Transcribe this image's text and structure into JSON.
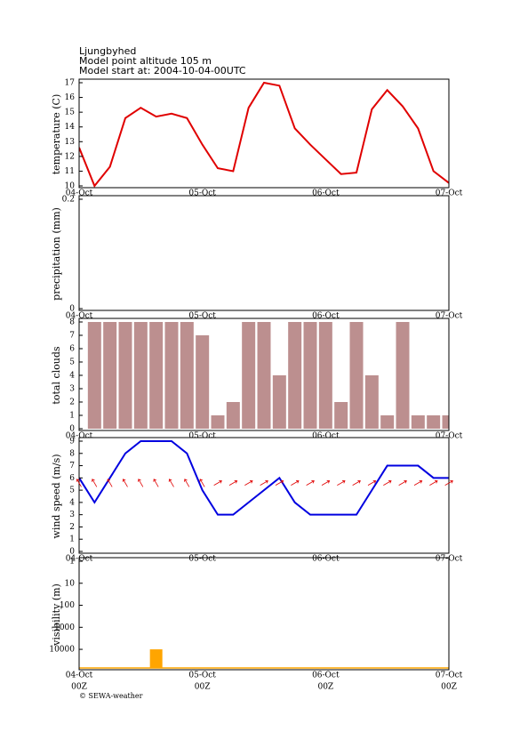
{
  "header": {
    "lines": [
      "Ljungbyhed",
      "Model point altitude  105 m",
      "Model start at: 2004-10-04-00UTC"
    ]
  },
  "footer": {
    "credit": "© SEWA-weather"
  },
  "chart_data": [
    {
      "type": "line",
      "ylabel": "temperature (C)",
      "color": "#e00000",
      "categories": [
        "04-Oct",
        null,
        null,
        null,
        null,
        null,
        null,
        null,
        "05-Oct",
        null,
        null,
        null,
        null,
        null,
        null,
        null,
        "06-Oct",
        null,
        null,
        null,
        null,
        null,
        null,
        null,
        "07-Oct"
      ],
      "values": [
        12.6,
        10.0,
        11.3,
        14.6,
        15.3,
        14.7,
        14.9,
        14.6,
        12.8,
        11.2,
        11.0,
        15.3,
        17.0,
        16.8,
        13.9,
        12.8,
        11.8,
        10.8,
        10.9,
        15.2,
        16.5,
        15.4,
        13.9,
        11.0,
        10.2
      ],
      "ylim": [
        10,
        17
      ],
      "yticks": [
        10,
        11,
        12,
        13,
        14,
        15,
        16,
        17
      ]
    },
    {
      "type": "bar",
      "ylabel": "precipitation (mm)",
      "color": "#4060e0",
      "categories": [
        "04-Oct",
        null,
        null,
        null,
        null,
        null,
        null,
        null,
        "05-Oct",
        null,
        null,
        null,
        null,
        null,
        null,
        null,
        "06-Oct",
        null,
        null,
        null,
        null,
        null,
        null,
        null,
        "07-Oct"
      ],
      "values": [
        null,
        0,
        0,
        0,
        0,
        0,
        0,
        0,
        0,
        0,
        0,
        0,
        0,
        0,
        0,
        0,
        0,
        0,
        0,
        0,
        0,
        0,
        0,
        0,
        0
      ],
      "ylim": [
        0,
        0.2
      ],
      "yticks": [
        0,
        0.2
      ]
    },
    {
      "type": "bar",
      "ylabel": "total clouds",
      "color": "#bc8f8f",
      "categories": [
        "04-Oct",
        null,
        null,
        null,
        null,
        null,
        null,
        null,
        "05-Oct",
        null,
        null,
        null,
        null,
        null,
        null,
        null,
        "06-Oct",
        null,
        null,
        null,
        null,
        null,
        null,
        null,
        "07-Oct"
      ],
      "values": [
        null,
        8,
        8,
        8,
        8,
        8,
        8,
        8,
        7,
        1,
        2,
        8,
        8,
        4,
        8,
        8,
        8,
        2,
        8,
        4,
        1,
        8,
        1,
        1,
        1
      ],
      "ylim": [
        0,
        8
      ],
      "yticks": [
        0,
        1,
        2,
        3,
        4,
        5,
        6,
        7,
        8
      ]
    },
    {
      "type": "line",
      "ylabel": "wind speed (m/s)",
      "color": "#0000e0",
      "arrow_color": "#e00000",
      "categories": [
        "04-Oct",
        null,
        null,
        null,
        null,
        null,
        null,
        null,
        "05-Oct",
        null,
        null,
        null,
        null,
        null,
        null,
        null,
        "06-Oct",
        null,
        null,
        null,
        null,
        null,
        null,
        null,
        "07-Oct"
      ],
      "values": [
        6,
        4,
        6,
        8,
        9,
        9,
        9,
        8,
        5,
        3,
        3,
        4,
        5,
        6,
        4,
        3,
        3,
        3,
        3,
        5,
        7,
        7,
        7,
        6,
        6
      ],
      "directions": [
        330,
        330,
        330,
        330,
        330,
        330,
        330,
        330,
        330,
        60,
        60,
        60,
        60,
        60,
        60,
        60,
        60,
        60,
        60,
        60,
        60,
        60,
        60,
        60,
        60
      ],
      "ylim": [
        0,
        9
      ],
      "yticks": [
        0,
        1,
        2,
        3,
        4,
        5,
        6,
        7,
        8,
        9
      ]
    },
    {
      "type": "bar",
      "ylabel": "visibility (m)",
      "color": "#ffa500",
      "log": true,
      "inverted": true,
      "categories": [
        "04-Oct",
        null,
        null,
        null,
        null,
        null,
        null,
        null,
        "05-Oct",
        null,
        null,
        null,
        null,
        null,
        null,
        null,
        "06-Oct",
        null,
        null,
        null,
        null,
        null,
        null,
        null,
        "07-Oct"
      ],
      "hour_labels": [
        "00Z",
        null,
        null,
        null,
        null,
        null,
        null,
        null,
        "00Z",
        null,
        null,
        null,
        null,
        null,
        null,
        null,
        "00Z",
        null,
        null,
        null,
        null,
        null,
        null,
        null,
        "00Z"
      ],
      "values": [
        70000,
        70000,
        70000,
        70000,
        70000,
        10000,
        70000,
        70000,
        70000,
        70000,
        70000,
        70000,
        70000,
        70000,
        70000,
        70000,
        70000,
        70000,
        70000,
        70000,
        70000,
        70000,
        70000,
        70000,
        70000
      ],
      "ylim": [
        1,
        70000
      ],
      "yticks": [
        1,
        10,
        100,
        1000,
        10000
      ]
    }
  ]
}
